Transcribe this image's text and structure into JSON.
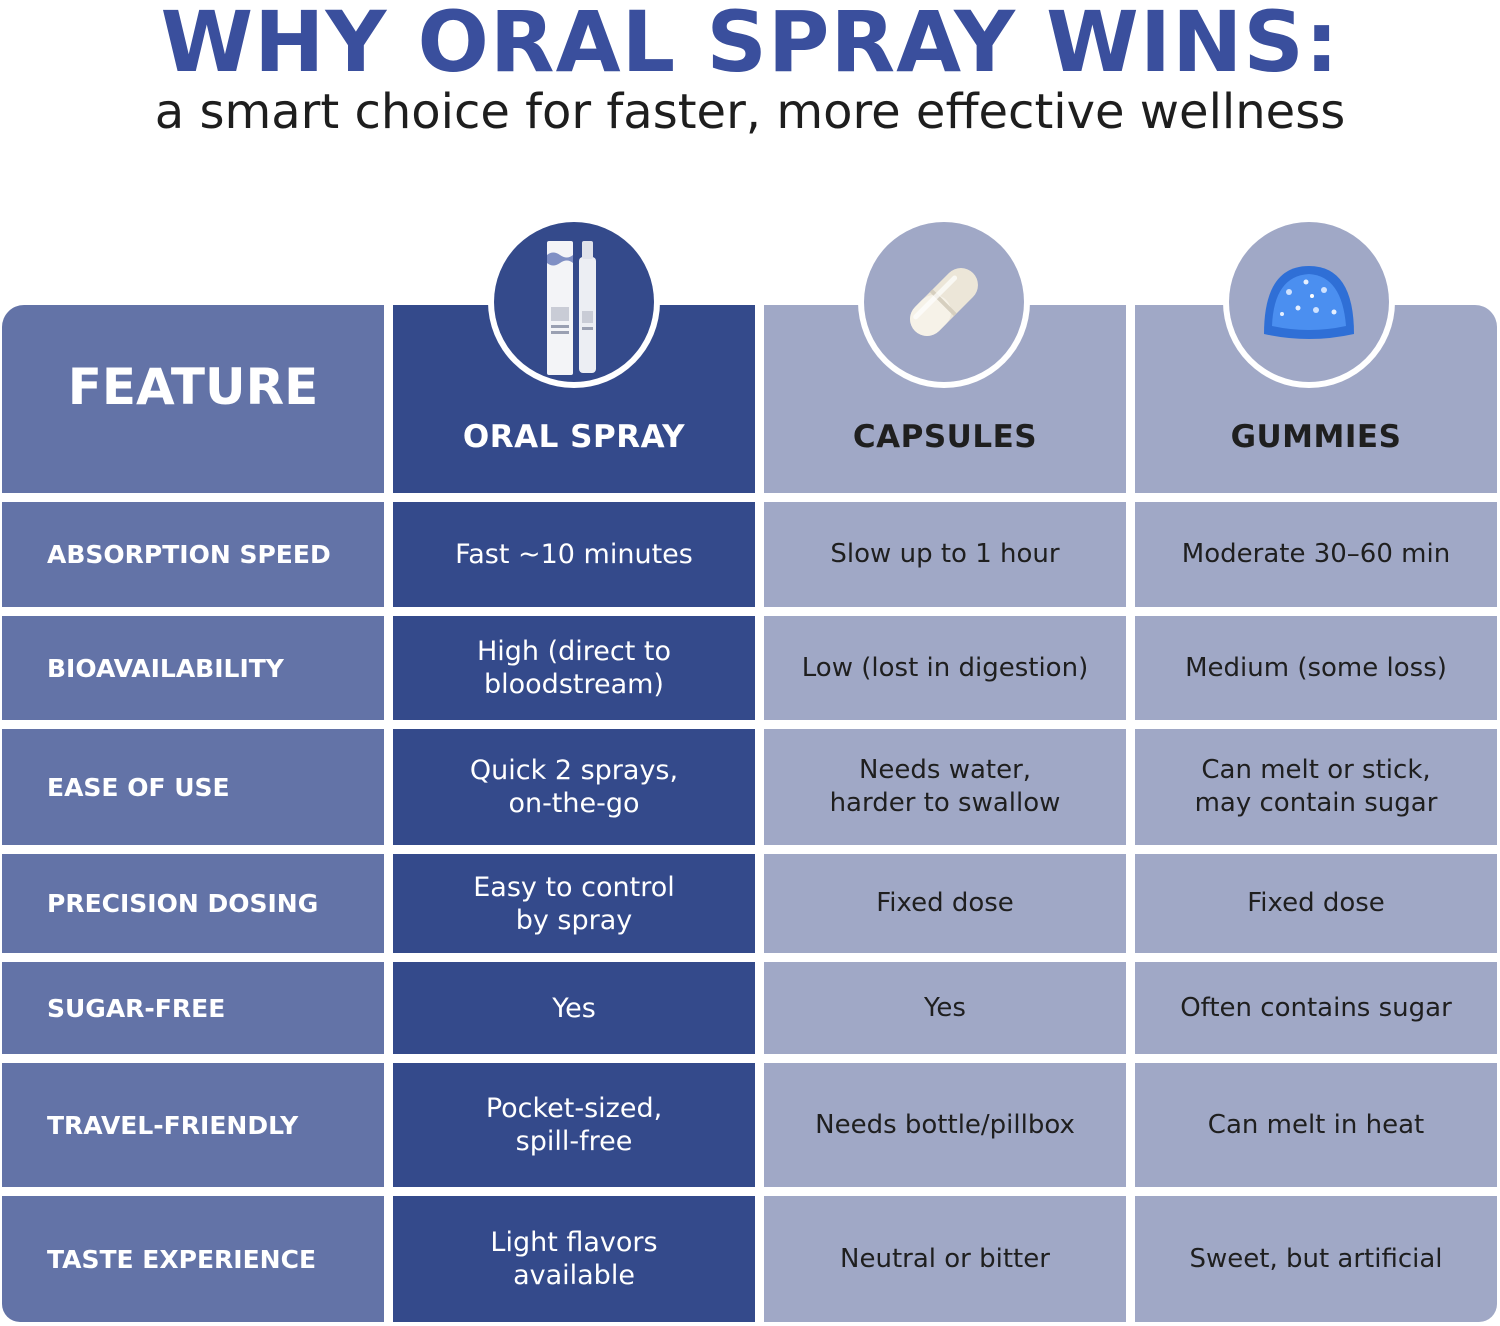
{
  "header": {
    "title": "WHY ORAL SPRAY WINS:",
    "subtitle": "a smart choice for faster, more effective wellness"
  },
  "columns": {
    "feature": "FEATURE",
    "oral_spray": "ORAL SPRAY",
    "capsules": "CAPSULES",
    "gummies": "GUMMIES"
  },
  "product_images": {
    "oral_spray": "spray-bottle-icon",
    "capsules": "capsule-pill-icon",
    "gummies": "blue-gummy-icon"
  },
  "colors": {
    "title_blue": "#3a4f9d",
    "feature_column": "#6373a7",
    "oral_spray_column": "#344a8b",
    "other_columns": "#a0a8c6"
  },
  "rows": [
    {
      "feature": "ABSORPTION SPEED",
      "oral_spray": "Fast ~10 minutes",
      "capsules": "Slow up to 1 hour",
      "gummies": "Moderate 30–60 min"
    },
    {
      "feature": "BIOAVAILABILITY",
      "oral_spray": "High (direct to\nbloodstream)",
      "capsules": "Low (lost in digestion)",
      "gummies": "Medium (some loss)"
    },
    {
      "feature": "EASE OF USE",
      "oral_spray": "Quick 2 sprays,\non-the-go",
      "capsules": "Needs water,\nharder to swallow",
      "gummies": "Can melt or stick,\nmay contain sugar"
    },
    {
      "feature": "PRECISION DOSING",
      "oral_spray": "Easy to control\nby spray",
      "capsules": "Fixed dose",
      "gummies": "Fixed dose"
    },
    {
      "feature": "SUGAR-FREE",
      "oral_spray": "Yes",
      "capsules": "Yes",
      "gummies": "Often contains sugar"
    },
    {
      "feature": "TRAVEL-FRIENDLY",
      "oral_spray": "Pocket-sized,\nspill-free",
      "capsules": "Needs bottle/pillbox",
      "gummies": "Can melt in heat"
    },
    {
      "feature": "TASTE EXPERIENCE",
      "oral_spray": "Light flavors\navailable",
      "capsules": "Neutral or bitter",
      "gummies": "Sweet, but artificial"
    }
  ]
}
